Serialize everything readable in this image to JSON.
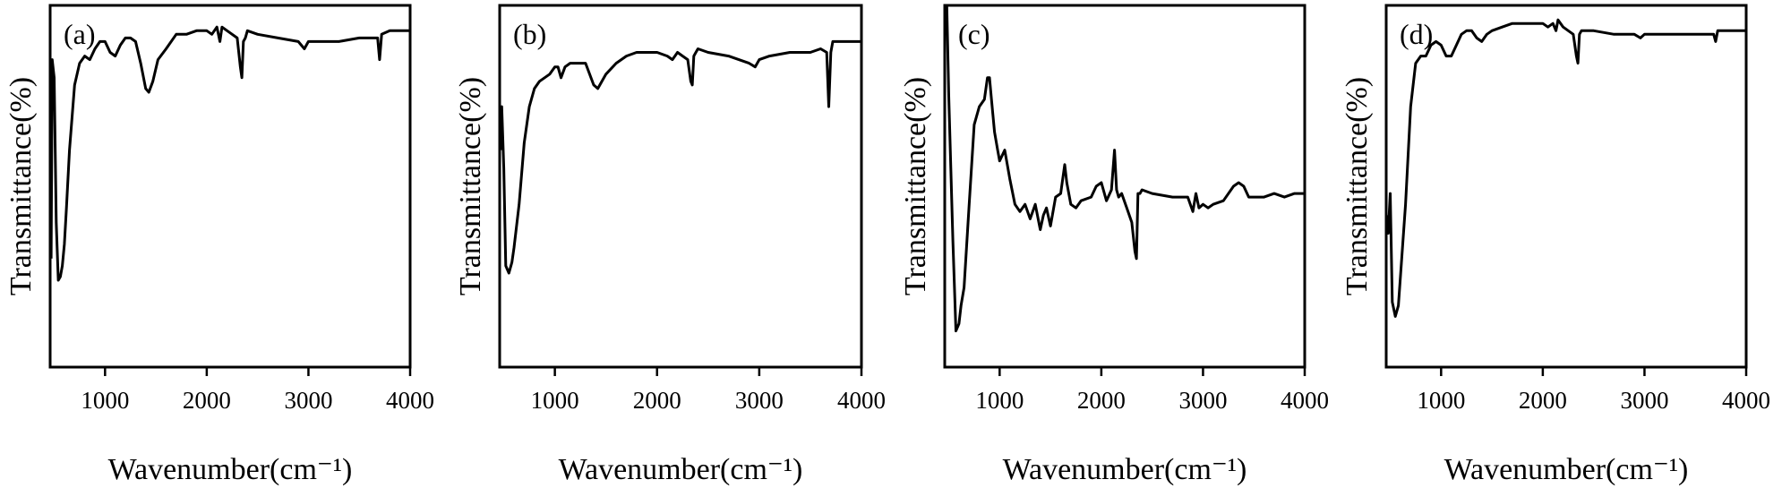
{
  "chart_data": [
    {
      "type": "line",
      "panel_label": "(a)",
      "xlabel": "Wavenumber(cm⁻¹)",
      "ylabel": "Transmittance(%)",
      "xlim": [
        460,
        4000
      ],
      "ylim": [
        0,
        100
      ],
      "x_ticks": [
        1000,
        2000,
        3000,
        4000
      ],
      "series": [
        {
          "x": [
            470,
            480,
            500,
            520,
            540,
            560,
            580,
            600,
            620,
            650,
            700,
            750,
            800,
            850,
            900,
            950,
            1000,
            1050,
            1100,
            1150,
            1200,
            1250,
            1300,
            1350,
            1400,
            1430,
            1470,
            1520,
            1600,
            1700,
            1800,
            1900,
            2000,
            2050,
            2100,
            2130,
            2150,
            2200,
            2300,
            2330,
            2345,
            2360,
            2380,
            2400,
            2500,
            2700,
            2900,
            2960,
            3000,
            3100,
            3300,
            3500,
            3680,
            3700,
            3720,
            3800,
            3900,
            4000
          ],
          "y": [
            30,
            85,
            80,
            40,
            24,
            25,
            28,
            34,
            44,
            60,
            78,
            84,
            86,
            85,
            88,
            90,
            90,
            87,
            86,
            89,
            91,
            91,
            90,
            84,
            77,
            76,
            79,
            85,
            88,
            92,
            92,
            93,
            93,
            92,
            94,
            90,
            94,
            93,
            91,
            83,
            80,
            90,
            91,
            93,
            92,
            91,
            90,
            88,
            90,
            90,
            90,
            91,
            91,
            85,
            92,
            93,
            93,
            93
          ]
        }
      ]
    },
    {
      "type": "line",
      "panel_label": "(b)",
      "xlabel": "Wavenumber(cm⁻¹)",
      "ylabel": "Transmittance(%)",
      "xlim": [
        460,
        4000
      ],
      "ylim": [
        0,
        100
      ],
      "x_ticks": [
        1000,
        2000,
        3000,
        4000
      ],
      "series": [
        {
          "x": [
            470,
            480,
            500,
            520,
            550,
            580,
            600,
            650,
            700,
            750,
            800,
            850,
            900,
            950,
            1000,
            1030,
            1060,
            1100,
            1150,
            1200,
            1300,
            1380,
            1420,
            1500,
            1600,
            1700,
            1800,
            1900,
            2000,
            2100,
            2150,
            2200,
            2250,
            2300,
            2330,
            2345,
            2360,
            2380,
            2400,
            2500,
            2700,
            2900,
            2960,
            3000,
            3100,
            3300,
            3500,
            3600,
            3660,
            3680,
            3700,
            3720,
            3800,
            3900,
            4000
          ],
          "y": [
            60,
            72,
            55,
            28,
            26,
            29,
            33,
            45,
            62,
            72,
            77,
            79,
            80,
            81,
            83,
            83,
            80,
            83,
            84,
            84,
            84,
            78,
            77,
            81,
            84,
            86,
            87,
            87,
            87,
            86,
            85,
            87,
            86,
            85,
            79,
            78,
            86,
            87,
            88,
            87,
            86,
            84,
            83,
            85,
            86,
            87,
            87,
            88,
            87,
            72,
            87,
            90,
            90,
            90,
            90
          ]
        }
      ]
    },
    {
      "type": "line",
      "panel_label": "(c)",
      "xlabel": "Wavenumber(cm⁻¹)",
      "ylabel": "Transmittance(%)",
      "xlim": [
        460,
        4000
      ],
      "ylim": [
        0,
        100
      ],
      "x_ticks": [
        1000,
        2000,
        3000,
        4000
      ],
      "series": [
        {
          "x": [
            470,
            480,
            500,
            520,
            540,
            570,
            600,
            620,
            650,
            700,
            750,
            800,
            850,
            880,
            900,
            920,
            950,
            980,
            1000,
            1050,
            1100,
            1150,
            1200,
            1250,
            1300,
            1350,
            1400,
            1430,
            1460,
            1500,
            1550,
            1600,
            1640,
            1660,
            1700,
            1750,
            1800,
            1900,
            1950,
            2000,
            2050,
            2100,
            2130,
            2150,
            2170,
            2200,
            2250,
            2300,
            2330,
            2345,
            2360,
            2380,
            2400,
            2500,
            2700,
            2850,
            2900,
            2930,
            2960,
            3000,
            3050,
            3100,
            3200,
            3300,
            3350,
            3400,
            3450,
            3500,
            3600,
            3700,
            3800,
            3900,
            4000
          ],
          "y": [
            96,
            100,
            75,
            55,
            35,
            10,
            12,
            17,
            22,
            45,
            67,
            72,
            74,
            80,
            80,
            74,
            65,
            60,
            57,
            60,
            52,
            45,
            43,
            45,
            41,
            45,
            38,
            42,
            44,
            39,
            47,
            48,
            56,
            51,
            45,
            44,
            46,
            47,
            50,
            51,
            46,
            49,
            60,
            49,
            47,
            48,
            44,
            40,
            32,
            30,
            48,
            48,
            49,
            48,
            47,
            47,
            43,
            48,
            44,
            45,
            44,
            45,
            46,
            50,
            51,
            50,
            47,
            47,
            47,
            48,
            47,
            48,
            48
          ]
        }
      ]
    },
    {
      "type": "line",
      "panel_label": "(d)",
      "xlabel": "Wavenumber(cm⁻¹)",
      "ylabel": "Transmittance(%)",
      "xlim": [
        460,
        4000
      ],
      "ylim": [
        0,
        100
      ],
      "x_ticks": [
        1000,
        2000,
        3000,
        4000
      ],
      "series": [
        {
          "x": [
            470,
            480,
            500,
            520,
            550,
            580,
            600,
            650,
            700,
            750,
            800,
            850,
            900,
            950,
            1000,
            1050,
            1100,
            1150,
            1200,
            1250,
            1300,
            1350,
            1400,
            1450,
            1500,
            1600,
            1700,
            1800,
            1900,
            2000,
            2050,
            2100,
            2130,
            2150,
            2200,
            2250,
            2300,
            2330,
            2345,
            2360,
            2380,
            2400,
            2500,
            2700,
            2900,
            2960,
            3000,
            3100,
            3300,
            3500,
            3600,
            3680,
            3700,
            3720,
            3800,
            3900,
            4000
          ],
          "y": [
            42,
            37,
            48,
            18,
            14,
            17,
            25,
            45,
            72,
            84,
            86,
            86,
            89,
            90,
            89,
            86,
            86,
            89,
            92,
            93,
            93,
            91,
            90,
            92,
            93,
            94,
            95,
            95,
            95,
            95,
            94,
            95,
            93,
            96,
            94,
            93,
            92,
            86,
            84,
            92,
            93,
            93,
            93,
            92,
            92,
            91,
            92,
            92,
            92,
            92,
            92,
            92,
            90,
            93,
            93,
            93,
            93
          ]
        }
      ]
    }
  ]
}
